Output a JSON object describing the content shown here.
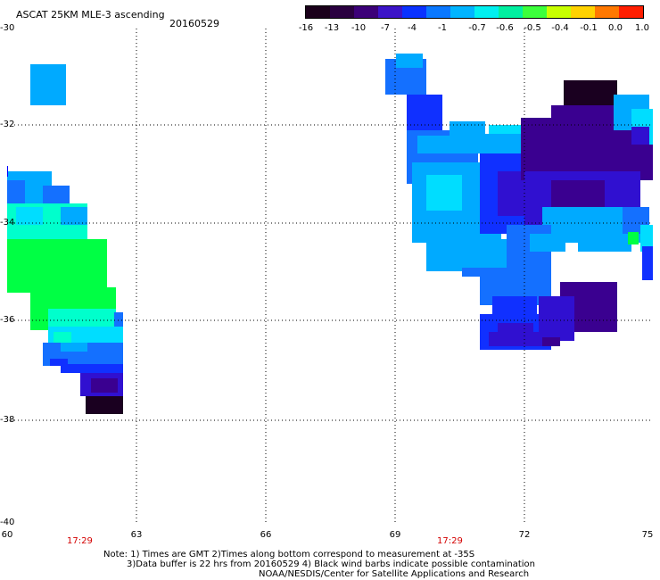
{
  "header": {
    "title": "ASCAT 25KM MLE-3 ascending",
    "date": "20160529"
  },
  "colorbar": {
    "labels": [
      "-16",
      "-13",
      "-10",
      "-7",
      "-4",
      "-1",
      "-0.7",
      "-0.6",
      "-0.5",
      "-0.4",
      "-0.1",
      "0.0",
      "1.0"
    ],
    "colors": [
      "#1a001a",
      "#2a0040",
      "#3c0078",
      "#3c14c8",
      "#0a32ff",
      "#0a78ff",
      "#00b4ff",
      "#00f0f0",
      "#00f0a0",
      "#3cff3c",
      "#c8ff00",
      "#ffd200",
      "#ff7800",
      "#ff1e00"
    ]
  },
  "axes": {
    "y_labels": [
      "-30",
      "-32",
      "-34",
      "-36",
      "-38",
      "-40"
    ],
    "x_labels": [
      "60",
      "63",
      "66",
      "69",
      "72",
      "75"
    ],
    "times": [
      "17:29",
      "17:29"
    ]
  },
  "footer": {
    "note1": "Note: 1) Times are GMT 2)Times along bottom correspond to measurement at -35S",
    "note2": "3)Data buffer is 22 hrs from 20160529 4) Black wind barbs indicate possible contamination",
    "note3": "NOAA/NESDIS/Center for Satellite Applications and Research"
  },
  "palette": {
    "dark": "#1a0020",
    "purple": "#3a0090",
    "indigo": "#3010d0",
    "blue": "#1030ff",
    "medblue": "#1470ff",
    "sky": "#00aaff",
    "cyan": "#00ddff",
    "aqua": "#00ffcc",
    "green": "#00ff44"
  }
}
